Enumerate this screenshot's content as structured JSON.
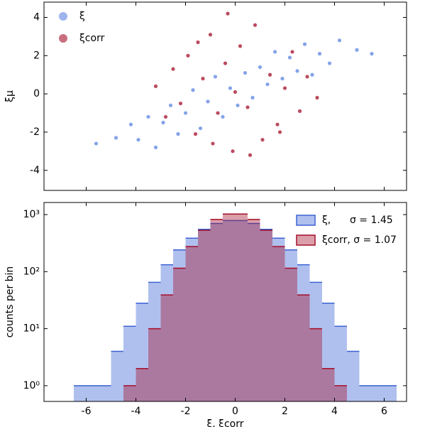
{
  "chart_data": [
    {
      "type": "scatter",
      "ylabel": "ξμ",
      "xlim": [
        -7.7,
        6.9
      ],
      "xticks": [
        -6,
        -4,
        -2,
        0,
        2,
        4,
        6
      ],
      "ylim": [
        -5.05,
        4.8
      ],
      "yticks": [
        -4,
        -2,
        0,
        2,
        4
      ],
      "legend": "upper left",
      "series": [
        {
          "name": "ξ",
          "color": "#5b84e0",
          "x": [
            -4.8,
            -4.2,
            -3.9,
            -3.5,
            -3.2,
            -2.9,
            -2.6,
            -2.3,
            -2.0,
            -1.7,
            -1.4,
            -1.1,
            -0.8,
            -0.5,
            -0.2,
            0.1,
            0.4,
            0.7,
            1.0,
            1.3,
            1.6,
            1.9,
            2.2,
            2.5,
            2.8,
            3.1,
            3.4,
            3.8,
            4.2,
            4.9,
            -5.6,
            5.5
          ],
          "values": [
            -2.3,
            -1.6,
            -2.4,
            -1.2,
            -2.8,
            -1.5,
            -0.6,
            -2.1,
            -1.0,
            0.2,
            -1.8,
            -0.4,
            0.9,
            -1.2,
            0.3,
            -0.6,
            1.1,
            -0.2,
            1.4,
            0.5,
            2.2,
            0.8,
            1.9,
            1.2,
            2.6,
            1.0,
            2.1,
            1.6,
            2.8,
            2.3,
            -2.6,
            2.1
          ]
        },
        {
          "name": "ξcorr",
          "color": "#a50f2a",
          "x": [
            -3.2,
            -2.8,
            -2.5,
            -2.2,
            -1.9,
            -1.6,
            -1.3,
            -1.0,
            -0.7,
            -0.4,
            -0.1,
            0.2,
            0.5,
            0.8,
            1.1,
            1.4,
            1.7,
            2.0,
            2.3,
            2.6,
            2.9,
            3.3,
            -0.9,
            0.6,
            -1.5,
            1.8,
            0.0,
            -0.3
          ],
          "values": [
            0.4,
            -1.2,
            1.3,
            -0.5,
            2.0,
            -2.1,
            0.8,
            3.1,
            -1.0,
            1.6,
            -3.0,
            2.5,
            -0.7,
            3.6,
            -2.4,
            1.0,
            -1.6,
            0.3,
            2.2,
            -0.9,
            0.9,
            -0.2,
            -2.6,
            -3.2,
            2.7,
            -2.0,
            0.1,
            4.2
          ]
        }
      ]
    },
    {
      "type": "histogram",
      "xlabel": "ξ,  ξcorr",
      "ylabel": "counts per bin",
      "log_y": true,
      "xlim": [
        -7.7,
        6.9
      ],
      "xticks": [
        -6,
        -4,
        -2,
        0,
        2,
        4,
        6
      ],
      "ylim": [
        0.53,
        1630
      ],
      "yticks": [
        {
          "value": 1,
          "label": "10⁰"
        },
        {
          "value": 10,
          "label": "10¹"
        },
        {
          "value": 100,
          "label": "10²"
        },
        {
          "value": 1000,
          "label": "10³"
        }
      ],
      "legend": "upper right",
      "bins": [
        -6.5,
        -6,
        -5.5,
        -5,
        -4.5,
        -4,
        -3.5,
        -3,
        -2.5,
        -2,
        -1.5,
        -1,
        -0.5,
        0,
        0.5,
        1,
        1.5,
        2,
        2.5,
        3,
        3.5,
        4,
        4.5,
        5,
        5.5,
        6,
        6.5
      ],
      "series": [
        {
          "name": "ξ,      σ = 1.45",
          "color": "#3a62d4",
          "values": [
            1,
            1,
            1,
            4,
            11,
            28,
            65,
            132,
            240,
            385,
            552,
            700,
            788,
            788,
            700,
            552,
            385,
            240,
            132,
            65,
            28,
            11,
            4,
            1,
            1,
            1
          ]
        },
        {
          "name": "ξcorr, σ = 1.07",
          "color": "#a50f2a",
          "values": [
            0,
            0,
            0,
            0,
            1,
            2,
            10,
            39,
            115,
            275,
            530,
            821,
            1022,
            1022,
            821,
            530,
            275,
            115,
            39,
            10,
            2,
            1,
            0,
            0,
            0,
            0
          ]
        }
      ]
    }
  ]
}
